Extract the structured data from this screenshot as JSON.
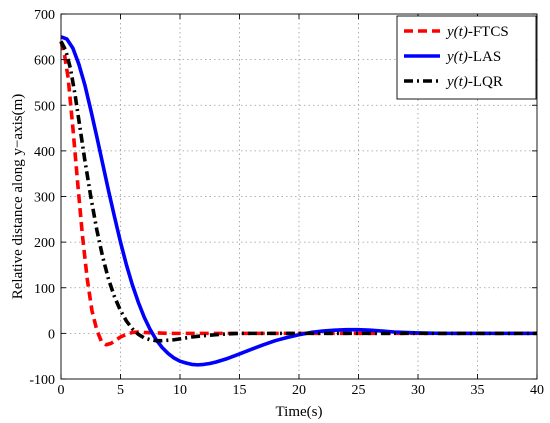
{
  "chart_data": {
    "type": "line",
    "xlabel": "Time(s)",
    "ylabel": "Relative distance along y−axis(m)",
    "xlim": [
      0,
      40
    ],
    "ylim": [
      -100,
      700
    ],
    "xticks": [
      0,
      5,
      10,
      15,
      20,
      25,
      30,
      35,
      40
    ],
    "yticks": [
      -100,
      0,
      100,
      200,
      300,
      400,
      500,
      600,
      700
    ],
    "grid": true,
    "legend_position": "top-right",
    "series": [
      {
        "name": "FTCS",
        "legend_var": "y(t)",
        "legend_suffix": "-FTCS",
        "color": "#ff0000",
        "style": "dashed",
        "x": [
          0,
          0.3,
          0.6,
          1.0,
          1.4,
          1.8,
          2.2,
          2.6,
          3.0,
          3.4,
          3.8,
          4.2,
          4.6,
          5.0,
          5.5,
          6.0,
          6.5,
          7.0,
          8.0,
          9.0,
          10,
          12,
          15,
          20,
          25,
          30,
          35,
          40
        ],
        "y": [
          640,
          610,
          560,
          450,
          330,
          215,
          120,
          50,
          8,
          -18,
          -25,
          -22,
          -15,
          -8,
          -2,
          2,
          3,
          2,
          1,
          0,
          0,
          0,
          0,
          0,
          0,
          0,
          0,
          0
        ]
      },
      {
        "name": "LAS",
        "legend_var": "y(t)",
        "legend_suffix": "-LAS",
        "color": "#0000ff",
        "style": "solid",
        "x": [
          0,
          0.5,
          1,
          1.5,
          2,
          2.5,
          3,
          3.5,
          4,
          4.5,
          5,
          5.5,
          6,
          6.5,
          7,
          7.5,
          8,
          8.5,
          9,
          9.5,
          10,
          10.5,
          11,
          11.5,
          12,
          12.5,
          13,
          14,
          15,
          16,
          17,
          18,
          19,
          20,
          21,
          22,
          23,
          24,
          25,
          26,
          27,
          28,
          30,
          32,
          35,
          40
        ],
        "y": [
          650,
          645,
          625,
          590,
          545,
          490,
          432,
          372,
          312,
          255,
          200,
          150,
          106,
          68,
          35,
          8,
          -14,
          -31,
          -44,
          -54,
          -61,
          -65,
          -68,
          -69,
          -68,
          -66,
          -63,
          -55,
          -45,
          -35,
          -25,
          -16,
          -9,
          -3,
          2,
          5,
          7,
          8,
          8,
          7,
          5,
          3,
          1,
          0,
          0,
          0
        ]
      },
      {
        "name": "LQR",
        "legend_var": "y(t)",
        "legend_suffix": "-LQR",
        "color": "#000000",
        "style": "dashdot",
        "x": [
          0,
          0.4,
          0.8,
          1.2,
          1.6,
          2.0,
          2.5,
          3.0,
          3.5,
          4.0,
          4.5,
          5.0,
          5.5,
          6.0,
          6.5,
          7.0,
          7.5,
          8.0,
          8.5,
          9.0,
          9.5,
          10,
          10.5,
          11,
          12,
          13,
          14,
          15,
          16,
          18,
          20,
          25,
          30,
          35,
          40
        ],
        "y": [
          640,
          620,
          580,
          520,
          450,
          380,
          300,
          228,
          168,
          118,
          80,
          50,
          27,
          10,
          -2,
          -10,
          -14,
          -16,
          -16,
          -15,
          -14,
          -12,
          -10,
          -8,
          -5,
          -3,
          -1,
          0,
          0,
          0,
          0,
          0,
          0,
          0,
          0
        ]
      }
    ]
  }
}
